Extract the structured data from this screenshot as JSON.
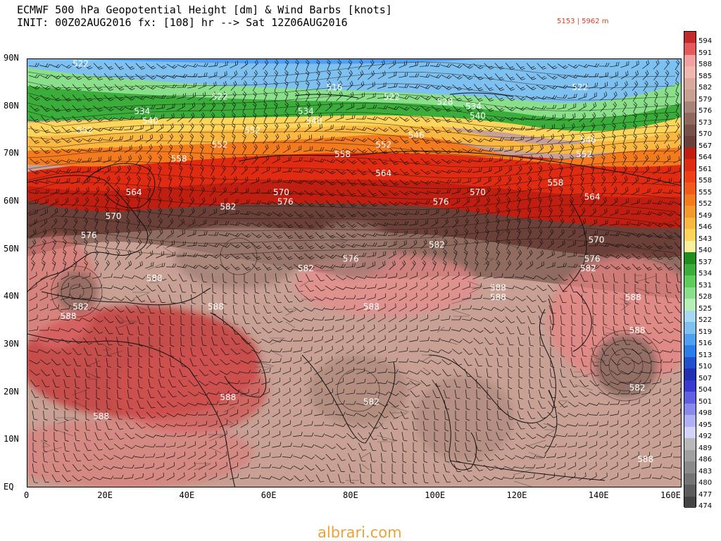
{
  "header": {
    "line1": "ECMWF 500 hPa Geopotential Height [dm] & Wind Barbs [knots]",
    "line2": "INIT: 00Z02AUG2016 fx: [108] hr --> Sat 12Z06AUG2016",
    "range": "5153 | 5962 m"
  },
  "map": {
    "lon_range": [
      0,
      160
    ],
    "lat_range": [
      0,
      90
    ],
    "x_ticks": [
      "0",
      "20E",
      "40E",
      "60E",
      "80E",
      "100E",
      "120E",
      "140E",
      "160E"
    ],
    "y_ticks": [
      "90N",
      "80N",
      "70N",
      "60N",
      "50N",
      "40N",
      "30N",
      "20N",
      "10N",
      "EQ"
    ],
    "contour_labels": [
      {
        "text": "522",
        "lon": 13,
        "lat": 89
      },
      {
        "text": "516",
        "lon": 75,
        "lat": 84
      },
      {
        "text": "522",
        "lon": 47,
        "lat": 82
      },
      {
        "text": "522",
        "lon": 89,
        "lat": 82
      },
      {
        "text": "528",
        "lon": 102,
        "lat": 81
      },
      {
        "text": "522",
        "lon": 135,
        "lat": 84
      },
      {
        "text": "534",
        "lon": 28,
        "lat": 79
      },
      {
        "text": "534",
        "lon": 68,
        "lat": 79
      },
      {
        "text": "534",
        "lon": 109,
        "lat": 80
      },
      {
        "text": "540",
        "lon": 30,
        "lat": 77
      },
      {
        "text": "540",
        "lon": 70,
        "lat": 77
      },
      {
        "text": "540",
        "lon": 110,
        "lat": 78
      },
      {
        "text": "552",
        "lon": 14,
        "lat": 75
      },
      {
        "text": "552",
        "lon": 55,
        "lat": 75
      },
      {
        "text": "546",
        "lon": 95,
        "lat": 74
      },
      {
        "text": "546",
        "lon": 137,
        "lat": 73
      },
      {
        "text": "552",
        "lon": 47,
        "lat": 72
      },
      {
        "text": "552",
        "lon": 87,
        "lat": 72
      },
      {
        "text": "552",
        "lon": 136,
        "lat": 70
      },
      {
        "text": "558",
        "lon": 37,
        "lat": 69
      },
      {
        "text": "558",
        "lon": 77,
        "lat": 70
      },
      {
        "text": "564",
        "lon": 87,
        "lat": 66
      },
      {
        "text": "558",
        "lon": 129,
        "lat": 64
      },
      {
        "text": "564",
        "lon": 26,
        "lat": 62
      },
      {
        "text": "570",
        "lon": 62,
        "lat": 62
      },
      {
        "text": "576",
        "lon": 63,
        "lat": 60
      },
      {
        "text": "582",
        "lon": 49,
        "lat": 59
      },
      {
        "text": "570",
        "lon": 110,
        "lat": 62
      },
      {
        "text": "576",
        "lon": 101,
        "lat": 60
      },
      {
        "text": "564",
        "lon": 138,
        "lat": 61
      },
      {
        "text": "570",
        "lon": 21,
        "lat": 57
      },
      {
        "text": "576",
        "lon": 15,
        "lat": 53
      },
      {
        "text": "582",
        "lon": 100,
        "lat": 51
      },
      {
        "text": "570",
        "lon": 139,
        "lat": 52
      },
      {
        "text": "576",
        "lon": 79,
        "lat": 48
      },
      {
        "text": "576",
        "lon": 138,
        "lat": 48
      },
      {
        "text": "582",
        "lon": 68,
        "lat": 46
      },
      {
        "text": "582",
        "lon": 137,
        "lat": 46
      },
      {
        "text": "588",
        "lon": 31,
        "lat": 44
      },
      {
        "text": "588",
        "lon": 115,
        "lat": 42
      },
      {
        "text": "588",
        "lon": 115,
        "lat": 40
      },
      {
        "text": "588",
        "lon": 148,
        "lat": 40
      },
      {
        "text": "582",
        "lon": 13,
        "lat": 38
      },
      {
        "text": "588",
        "lon": 46,
        "lat": 38
      },
      {
        "text": "588",
        "lon": 84,
        "lat": 38
      },
      {
        "text": "588",
        "lon": 10,
        "lat": 36
      },
      {
        "text": "588",
        "lon": 149,
        "lat": 33
      },
      {
        "text": "588",
        "lon": 49,
        "lat": 19
      },
      {
        "text": "582",
        "lon": 84,
        "lat": 18
      },
      {
        "text": "582",
        "lon": 149,
        "lat": 21
      },
      {
        "text": "588",
        "lon": 18,
        "lat": 15
      },
      {
        "text": "588",
        "lon": 151,
        "lat": 6
      }
    ]
  },
  "colorbar": {
    "levels": [
      "594",
      "591",
      "588",
      "585",
      "582",
      "579",
      "576",
      "573",
      "570",
      "567",
      "564",
      "561",
      "558",
      "555",
      "552",
      "549",
      "546",
      "543",
      "540",
      "537",
      "534",
      "531",
      "528",
      "525",
      "522",
      "519",
      "516",
      "513",
      "510",
      "507",
      "504",
      "501",
      "498",
      "495",
      "492",
      "489",
      "486",
      "483",
      "480",
      "477",
      "474"
    ],
    "colors": [
      "#c42a2a",
      "#e45a5a",
      "#f2a0a0",
      "#f0b8b0",
      "#d8aa9c",
      "#c8a094",
      "#a88478",
      "#90675c",
      "#78504a",
      "#6a4038",
      "#c01e10",
      "#e02a12",
      "#f03e18",
      "#f25a1a",
      "#f47a1e",
      "#f6982a",
      "#fbb840",
      "#fcd55a",
      "#f8f09a",
      "#1f8e1f",
      "#3aad3a",
      "#5dcc5d",
      "#8ae08a",
      "#b6f0b6",
      "#a8d8f4",
      "#7ec0f0",
      "#4f9ef0",
      "#2a7ee8",
      "#2050d0",
      "#2030b0",
      "#3a3ad0",
      "#6060e0",
      "#8a8aee",
      "#b0b0f6",
      "#d4d4fa",
      "#b8b8b8",
      "#a0a0a0",
      "#8a8a8a",
      "#747474",
      "#5c5c5c",
      "#444444"
    ]
  },
  "footer": {
    "text": "albrari.com"
  }
}
